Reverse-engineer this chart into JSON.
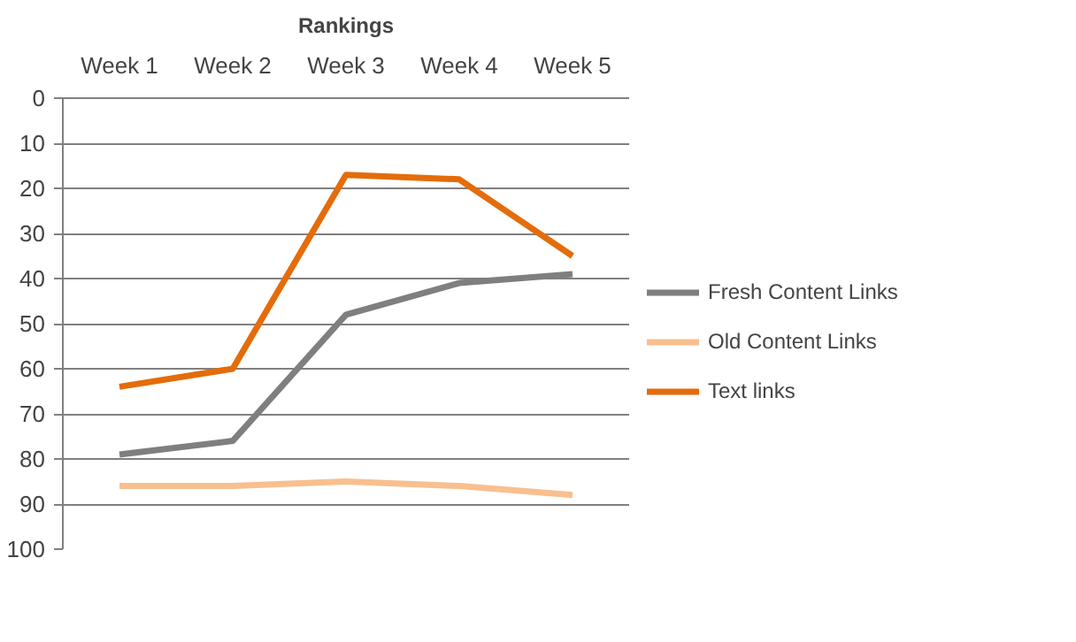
{
  "chart_data": {
    "type": "line",
    "title": "Rankings",
    "categories": [
      "Week 1",
      "Week 2",
      "Week 3",
      "Week 4",
      "Week 5"
    ],
    "series": [
      {
        "name": "Fresh Content Links",
        "color": "#7f7f7f",
        "values": [
          79,
          76,
          48,
          41,
          39
        ]
      },
      {
        "name": "Old Content Links",
        "color": "#f9bf8f",
        "values": [
          86,
          86,
          85,
          86,
          88
        ]
      },
      {
        "name": "Text links",
        "color": "#e46c0a",
        "values": [
          64,
          60,
          17,
          18,
          35
        ]
      }
    ],
    "ylim": [
      100,
      0
    ],
    "yticks": [
      0,
      10,
      20,
      30,
      40,
      50,
      60,
      70,
      80,
      90,
      100
    ],
    "grid": "y",
    "legend": "right",
    "marker": "none",
    "line_style": "solid"
  }
}
